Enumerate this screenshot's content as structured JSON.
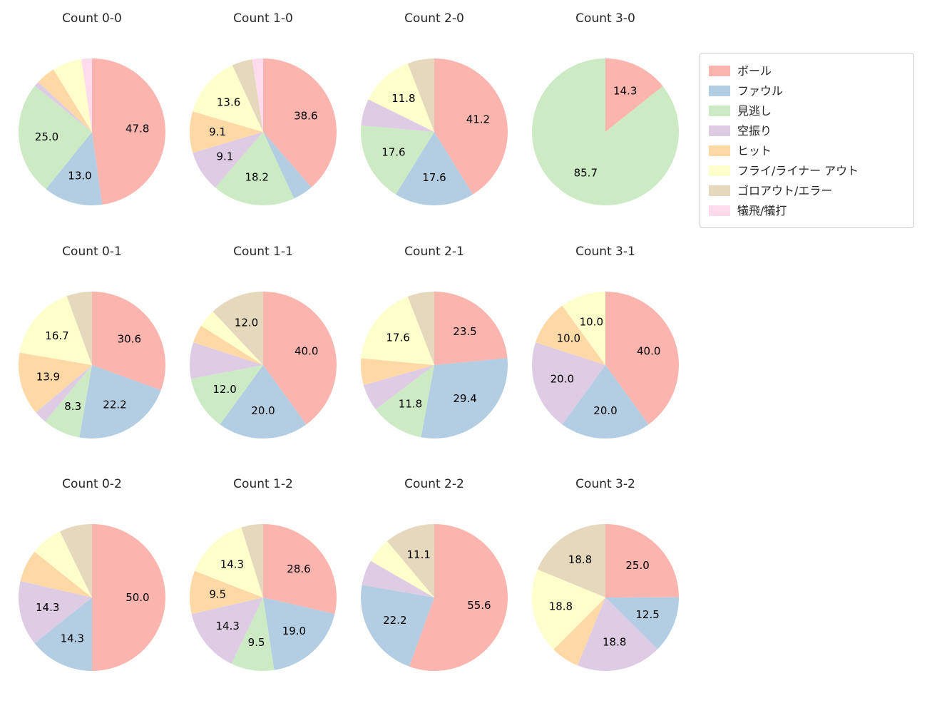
{
  "figure": {
    "background": "#ffffff",
    "text_color": "#262626",
    "label_color": "#000000"
  },
  "legend": {
    "items": [
      {
        "id": "ball",
        "label": "ボール",
        "color": "#fbb4ae"
      },
      {
        "id": "foul",
        "label": "ファウル",
        "color": "#b3cde3"
      },
      {
        "id": "called-strike",
        "label": "見逃し",
        "color": "#ccebc5"
      },
      {
        "id": "swinging-strike",
        "label": "空振り",
        "color": "#decbe4"
      },
      {
        "id": "hit",
        "label": "ヒット",
        "color": "#fed9a6"
      },
      {
        "id": "fly-liner-out",
        "label": "フライ/ライナー アウト",
        "color": "#ffffcc"
      },
      {
        "id": "ground-out-error",
        "label": "ゴロアウト/エラー",
        "color": "#e5d8bd"
      },
      {
        "id": "sac-fly-bunt",
        "label": "犠飛/犠打",
        "color": "#fddaec"
      }
    ]
  },
  "chart_data": [
    {
      "type": "pie",
      "title": "Count 0-0",
      "slices": [
        {
          "category": "ボール",
          "value": 47.8,
          "label": "47.8"
        },
        {
          "category": "ファウル",
          "value": 13.0,
          "label": "13.0"
        },
        {
          "category": "見逃し",
          "value": 25.0,
          "label": "25.0"
        },
        {
          "category": "空振り",
          "value": 1.1,
          "label": null
        },
        {
          "category": "ヒット",
          "value": 4.3,
          "label": null
        },
        {
          "category": "フライ/ライナー アウト",
          "value": 6.5,
          "label": null
        },
        {
          "category": "犠飛/犠打",
          "value": 2.3,
          "label": null
        }
      ]
    },
    {
      "type": "pie",
      "title": "Count 1-0",
      "slices": [
        {
          "category": "ボール",
          "value": 38.6,
          "label": "38.6"
        },
        {
          "category": "ファウル",
          "value": 4.5,
          "label": null
        },
        {
          "category": "見逃し",
          "value": 18.2,
          "label": "18.2"
        },
        {
          "category": "空振り",
          "value": 9.1,
          "label": "9.1"
        },
        {
          "category": "ヒット",
          "value": 9.1,
          "label": "9.1"
        },
        {
          "category": "フライ/ライナー アウト",
          "value": 13.6,
          "label": "13.6"
        },
        {
          "category": "ゴロアウト/エラー",
          "value": 4.5,
          "label": null
        },
        {
          "category": "犠飛/犠打",
          "value": 2.4,
          "label": null
        }
      ]
    },
    {
      "type": "pie",
      "title": "Count 2-0",
      "slices": [
        {
          "category": "ボール",
          "value": 41.2,
          "label": "41.2"
        },
        {
          "category": "ファウル",
          "value": 17.6,
          "label": "17.6"
        },
        {
          "category": "見逃し",
          "value": 17.6,
          "label": "17.6"
        },
        {
          "category": "空振り",
          "value": 5.9,
          "label": null
        },
        {
          "category": "フライ/ライナー アウト",
          "value": 11.8,
          "label": "11.8"
        },
        {
          "category": "ゴロアウト/エラー",
          "value": 5.9,
          "label": null
        }
      ]
    },
    {
      "type": "pie",
      "title": "Count 3-0",
      "slices": [
        {
          "category": "ボール",
          "value": 14.3,
          "label": "14.3"
        },
        {
          "category": "見逃し",
          "value": 85.7,
          "label": "85.7"
        }
      ]
    },
    {
      "type": "pie",
      "title": "Count 0-1",
      "slices": [
        {
          "category": "ボール",
          "value": 30.6,
          "label": "30.6"
        },
        {
          "category": "ファウル",
          "value": 22.2,
          "label": "22.2"
        },
        {
          "category": "見逃し",
          "value": 8.3,
          "label": "8.3"
        },
        {
          "category": "空振り",
          "value": 2.8,
          "label": null
        },
        {
          "category": "ヒット",
          "value": 13.9,
          "label": "13.9"
        },
        {
          "category": "フライ/ライナー アウト",
          "value": 16.7,
          "label": "16.7"
        },
        {
          "category": "ゴロアウト/エラー",
          "value": 5.6,
          "label": null
        }
      ]
    },
    {
      "type": "pie",
      "title": "Count 1-1",
      "slices": [
        {
          "category": "ボール",
          "value": 40.0,
          "label": "40.0"
        },
        {
          "category": "ファウル",
          "value": 20.0,
          "label": "20.0"
        },
        {
          "category": "見逃し",
          "value": 12.0,
          "label": "12.0"
        },
        {
          "category": "空振り",
          "value": 8.0,
          "label": null
        },
        {
          "category": "ヒット",
          "value": 4.0,
          "label": null
        },
        {
          "category": "フライ/ライナー アウト",
          "value": 4.0,
          "label": null
        },
        {
          "category": "ゴロアウト/エラー",
          "value": 12.0,
          "label": "12.0"
        }
      ]
    },
    {
      "type": "pie",
      "title": "Count 2-1",
      "slices": [
        {
          "category": "ボール",
          "value": 23.5,
          "label": "23.5"
        },
        {
          "category": "ファウル",
          "value": 29.4,
          "label": "29.4"
        },
        {
          "category": "見逃し",
          "value": 11.8,
          "label": "11.8"
        },
        {
          "category": "空振り",
          "value": 5.9,
          "label": null
        },
        {
          "category": "ヒット",
          "value": 5.9,
          "label": null
        },
        {
          "category": "フライ/ライナー アウト",
          "value": 17.6,
          "label": "17.6"
        },
        {
          "category": "ゴロアウト/エラー",
          "value": 5.9,
          "label": null
        }
      ]
    },
    {
      "type": "pie",
      "title": "Count 3-1",
      "slices": [
        {
          "category": "ボール",
          "value": 40.0,
          "label": "40.0"
        },
        {
          "category": "ファウル",
          "value": 20.0,
          "label": "20.0"
        },
        {
          "category": "空振り",
          "value": 20.0,
          "label": "20.0"
        },
        {
          "category": "ヒット",
          "value": 10.0,
          "label": "10.0"
        },
        {
          "category": "フライ/ライナー アウト",
          "value": 10.0,
          "label": "10.0"
        }
      ]
    },
    {
      "type": "pie",
      "title": "Count 0-2",
      "slices": [
        {
          "category": "ボール",
          "value": 50.0,
          "label": "50.0"
        },
        {
          "category": "ファウル",
          "value": 14.3,
          "label": "14.3"
        },
        {
          "category": "空振り",
          "value": 14.3,
          "label": "14.3"
        },
        {
          "category": "ヒット",
          "value": 7.1,
          "label": null
        },
        {
          "category": "フライ/ライナー アウト",
          "value": 7.1,
          "label": null
        },
        {
          "category": "ゴロアウト/エラー",
          "value": 7.2,
          "label": null
        }
      ]
    },
    {
      "type": "pie",
      "title": "Count 1-2",
      "slices": [
        {
          "category": "ボール",
          "value": 28.6,
          "label": "28.6"
        },
        {
          "category": "ファウル",
          "value": 19.0,
          "label": "19.0"
        },
        {
          "category": "見逃し",
          "value": 9.5,
          "label": "9.5"
        },
        {
          "category": "空振り",
          "value": 14.3,
          "label": "14.3"
        },
        {
          "category": "ヒット",
          "value": 9.5,
          "label": "9.5"
        },
        {
          "category": "フライ/ライナー アウト",
          "value": 14.3,
          "label": "14.3"
        },
        {
          "category": "ゴロアウト/エラー",
          "value": 4.8,
          "label": null
        }
      ]
    },
    {
      "type": "pie",
      "title": "Count 2-2",
      "slices": [
        {
          "category": "ボール",
          "value": 55.6,
          "label": "55.6"
        },
        {
          "category": "ファウル",
          "value": 22.2,
          "label": "22.2"
        },
        {
          "category": "空振り",
          "value": 5.6,
          "label": null
        },
        {
          "category": "フライ/ライナー アウト",
          "value": 5.6,
          "label": null
        },
        {
          "category": "ゴロアウト/エラー",
          "value": 11.1,
          "label": "11.1"
        }
      ]
    },
    {
      "type": "pie",
      "title": "Count 3-2",
      "slices": [
        {
          "category": "ボール",
          "value": 25.0,
          "label": "25.0"
        },
        {
          "category": "ファウル",
          "value": 12.5,
          "label": "12.5"
        },
        {
          "category": "空振り",
          "value": 18.8,
          "label": "18.8"
        },
        {
          "category": "ヒット",
          "value": 6.3,
          "label": null
        },
        {
          "category": "フライ/ライナー アウト",
          "value": 18.8,
          "label": "18.8"
        },
        {
          "category": "ゴロアウト/エラー",
          "value": 18.8,
          "label": "18.8"
        }
      ]
    }
  ]
}
